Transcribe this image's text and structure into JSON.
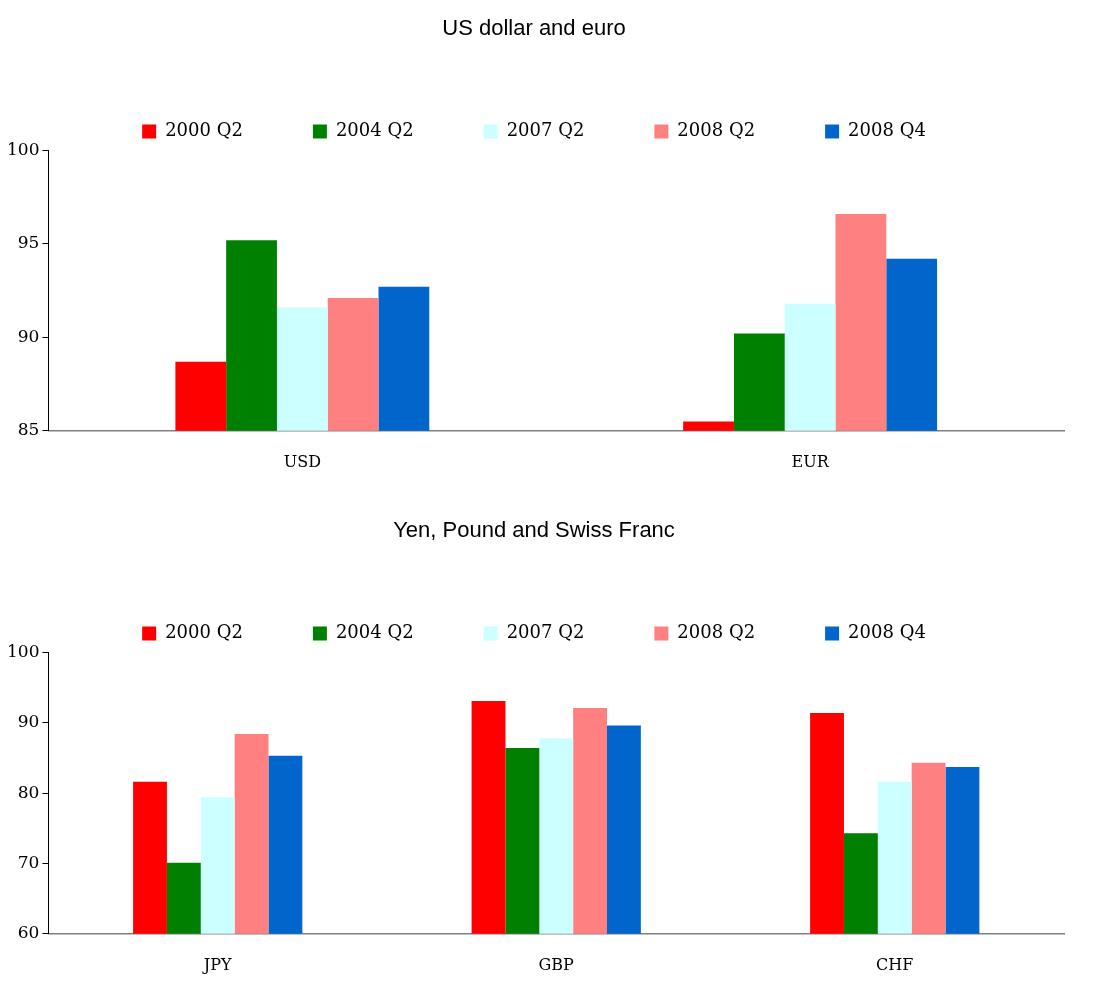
{
  "chart_data": [
    {
      "type": "bar",
      "title": "US dollar and euro",
      "categories": [
        "USD",
        "EUR"
      ],
      "series": [
        {
          "name": "2000 Q2",
          "color": "#ff0000",
          "values": [
            88.7,
            85.5
          ]
        },
        {
          "name": "2004 Q2",
          "color": "#008000",
          "values": [
            95.2,
            90.2
          ]
        },
        {
          "name": "2007 Q2",
          "color": "#ccffff",
          "values": [
            91.6,
            91.8
          ]
        },
        {
          "name": "2008 Q2",
          "color": "#ff8080",
          "values": [
            92.1,
            96.6
          ]
        },
        {
          "name": "2008 Q4",
          "color": "#0066cc",
          "values": [
            92.7,
            94.2
          ]
        }
      ],
      "ylim": [
        85,
        100
      ],
      "yticks": [
        85,
        90,
        95,
        100
      ],
      "grid": false,
      "legend": "top"
    },
    {
      "type": "bar",
      "title": "Yen, Pound and Swiss Franc",
      "categories": [
        "JPY",
        "GBP",
        "CHF"
      ],
      "series": [
        {
          "name": "2000 Q2",
          "color": "#ff0000",
          "values": [
            81.6,
            93.1,
            91.4
          ]
        },
        {
          "name": "2004 Q2",
          "color": "#008000",
          "values": [
            70.1,
            86.4,
            74.3
          ]
        },
        {
          "name": "2007 Q2",
          "color": "#ccffff",
          "values": [
            79.4,
            87.8,
            81.6
          ]
        },
        {
          "name": "2008 Q2",
          "color": "#ff8080",
          "values": [
            88.4,
            92.1,
            84.3
          ]
        },
        {
          "name": "2008 Q4",
          "color": "#0066cc",
          "values": [
            85.3,
            89.6,
            83.7
          ]
        }
      ],
      "ylim": [
        60,
        100
      ],
      "yticks": [
        60,
        70,
        80,
        90,
        100
      ],
      "grid": false,
      "legend": "top"
    }
  ]
}
